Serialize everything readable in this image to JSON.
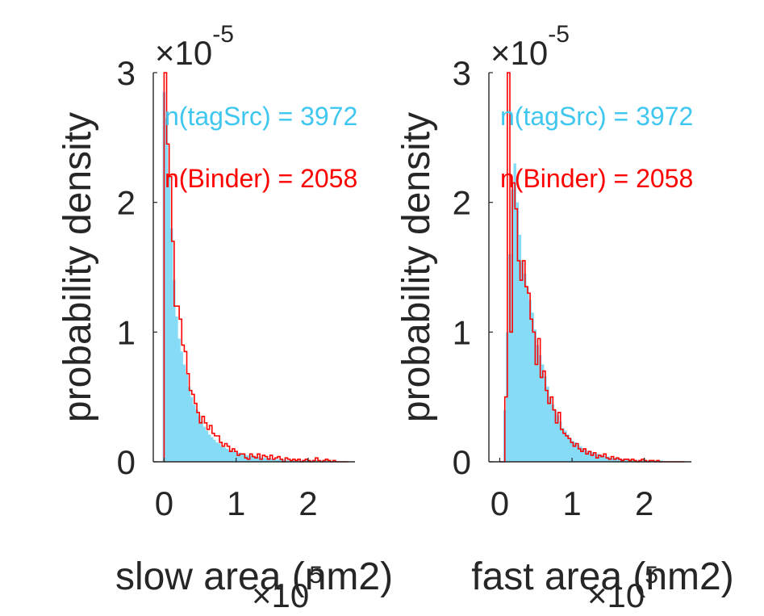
{
  "colors": {
    "tagSrc": "#86DCF7",
    "tagSrc_text": "#3FC7F0",
    "binder": "#FF0000",
    "axis": "#262626"
  },
  "chart_data": [
    {
      "type": "histogram",
      "xlabel": "slow area (nm2)",
      "ylabel": "probability density",
      "x_multiplier": "×10",
      "x_multiplier_exp": "5",
      "y_multiplier": "×10",
      "y_multiplier_exp": "-5",
      "xlim": [
        -0.15,
        2.65
      ],
      "ylim": [
        0,
        3
      ],
      "xticks": [
        0,
        1,
        2
      ],
      "xtick_labels": [
        "0",
        "1",
        "2"
      ],
      "yticks": [
        0,
        1,
        2,
        3
      ],
      "ytick_labels": [
        "0",
        "1",
        "2",
        "3"
      ],
      "annotations": [
        {
          "text": "n(tagSrc) = 3972",
          "series": "tagSrc"
        },
        {
          "text": "n(Binder) = 2058",
          "series": "Binder"
        }
      ],
      "bin_width": 0.035,
      "series": [
        {
          "style": "bar",
          "x0": -0.02,
          "values": [
            2.85,
            2.65,
            2.2,
            1.8,
            1.4,
            1.12,
            0.95,
            0.85,
            0.75,
            0.68,
            0.58,
            0.5,
            0.44,
            0.4,
            0.36,
            0.31,
            0.27,
            0.24,
            0.21,
            0.19,
            0.17,
            0.15,
            0.14,
            0.12,
            0.11,
            0.1,
            0.09,
            0.09,
            0.08,
            0.07,
            0.07,
            0.06,
            0.06,
            0.05,
            0.05,
            0.05,
            0.04,
            0.04,
            0.04,
            0.03,
            0.03,
            0.03,
            0.03,
            0.02,
            0.02,
            0.02,
            0.02,
            0.02,
            0.02,
            0.01,
            0.01,
            0.01,
            0.01,
            0.01,
            0.01,
            0.01,
            0.01,
            0.01,
            0.01,
            0.01,
            0.01,
            0.01,
            0.01,
            0.01,
            0.01,
            0.01,
            0.0,
            0.0,
            0.0,
            0.0,
            0.0,
            0.0,
            0.0,
            0.0,
            0.0
          ]
        },
        {
          "style": "stairs",
          "x0": 0.0,
          "values": [
            3.0,
            2.45,
            2.2,
            1.7,
            1.2,
            1.2,
            1.1,
            0.9,
            0.85,
            0.68,
            0.55,
            0.52,
            0.45,
            0.38,
            0.3,
            0.35,
            0.3,
            0.25,
            0.28,
            0.22,
            0.2,
            0.2,
            0.15,
            0.12,
            0.14,
            0.12,
            0.08,
            0.1,
            0.08,
            0.05,
            0.06,
            0.06,
            0.03,
            0.02,
            0.06,
            0.04,
            0.03,
            0.06,
            0.02,
            0.05,
            0.04,
            0.02,
            0.05,
            0.02,
            0.03,
            0.04,
            0.02,
            0.0,
            0.03,
            0.02,
            0.01,
            0.02,
            0.01,
            0.02,
            0.0,
            0.01,
            0.02,
            0.01,
            0.0,
            0.01,
            0.03,
            0.01,
            0.0,
            0.01,
            0.02,
            0.01,
            0.0,
            0.01,
            0.0,
            0.0,
            0.0,
            0.0,
            0.0
          ]
        }
      ]
    },
    {
      "type": "histogram",
      "xlabel": "fast area (nm2)",
      "ylabel": "probability density",
      "x_multiplier": "×10",
      "x_multiplier_exp": "5",
      "y_multiplier": "×10",
      "y_multiplier_exp": "-5",
      "xlim": [
        -0.15,
        2.65
      ],
      "ylim": [
        0,
        3
      ],
      "xticks": [
        0,
        1,
        2
      ],
      "xtick_labels": [
        "0",
        "1",
        "2"
      ],
      "yticks": [
        0,
        1,
        2,
        3
      ],
      "ytick_labels": [
        "0",
        "1",
        "2",
        "3"
      ],
      "annotations": [
        {
          "text": "n(tagSrc) = 3972",
          "series": "tagSrc"
        },
        {
          "text": "n(Binder) = 2058",
          "series": "Binder"
        }
      ],
      "bin_width": 0.035,
      "series": [
        {
          "style": "bar",
          "x0": -0.02,
          "values": [
            0.0,
            0.0,
            0.4,
            1.0,
            1.6,
            2.1,
            2.3,
            2.0,
            1.75,
            1.55,
            1.45,
            1.35,
            1.25,
            1.15,
            1.02,
            0.9,
            0.82,
            0.75,
            0.66,
            0.58,
            0.5,
            0.44,
            0.4,
            0.36,
            0.31,
            0.26,
            0.24,
            0.21,
            0.18,
            0.16,
            0.15,
            0.13,
            0.12,
            0.1,
            0.09,
            0.08,
            0.08,
            0.07,
            0.06,
            0.06,
            0.05,
            0.05,
            0.04,
            0.04,
            0.03,
            0.03,
            0.03,
            0.03,
            0.02,
            0.02,
            0.02,
            0.02,
            0.02,
            0.01,
            0.01,
            0.01,
            0.01,
            0.01,
            0.01,
            0.01,
            0.01,
            0.01,
            0.01,
            0.01,
            0.01,
            0.0,
            0.0,
            0.0,
            0.0,
            0.0,
            0.0,
            0.0,
            0.0,
            0.0,
            0.0
          ]
        },
        {
          "style": "stairs",
          "x0": 0.0,
          "values": [
            0.0,
            0.0,
            0.5,
            3.0,
            1.0,
            2.15,
            1.95,
            1.55,
            1.4,
            1.55,
            1.35,
            1.3,
            1.1,
            1.0,
            0.75,
            0.95,
            0.65,
            0.7,
            0.55,
            0.45,
            0.5,
            0.4,
            0.3,
            0.38,
            0.25,
            0.22,
            0.2,
            0.18,
            0.15,
            0.12,
            0.14,
            0.1,
            0.08,
            0.1,
            0.06,
            0.08,
            0.05,
            0.07,
            0.03,
            0.05,
            0.04,
            0.06,
            0.03,
            0.02,
            0.04,
            0.02,
            0.03,
            0.02,
            0.01,
            0.02,
            0.02,
            0.01,
            0.02,
            0.01,
            0.0,
            0.01,
            0.02,
            0.01,
            0.0,
            0.01,
            0.01,
            0.0,
            0.01,
            0.0,
            0.0,
            0.0,
            0.0,
            0.0,
            0.0,
            0.0,
            0.0,
            0.0,
            0.0
          ]
        }
      ]
    }
  ]
}
